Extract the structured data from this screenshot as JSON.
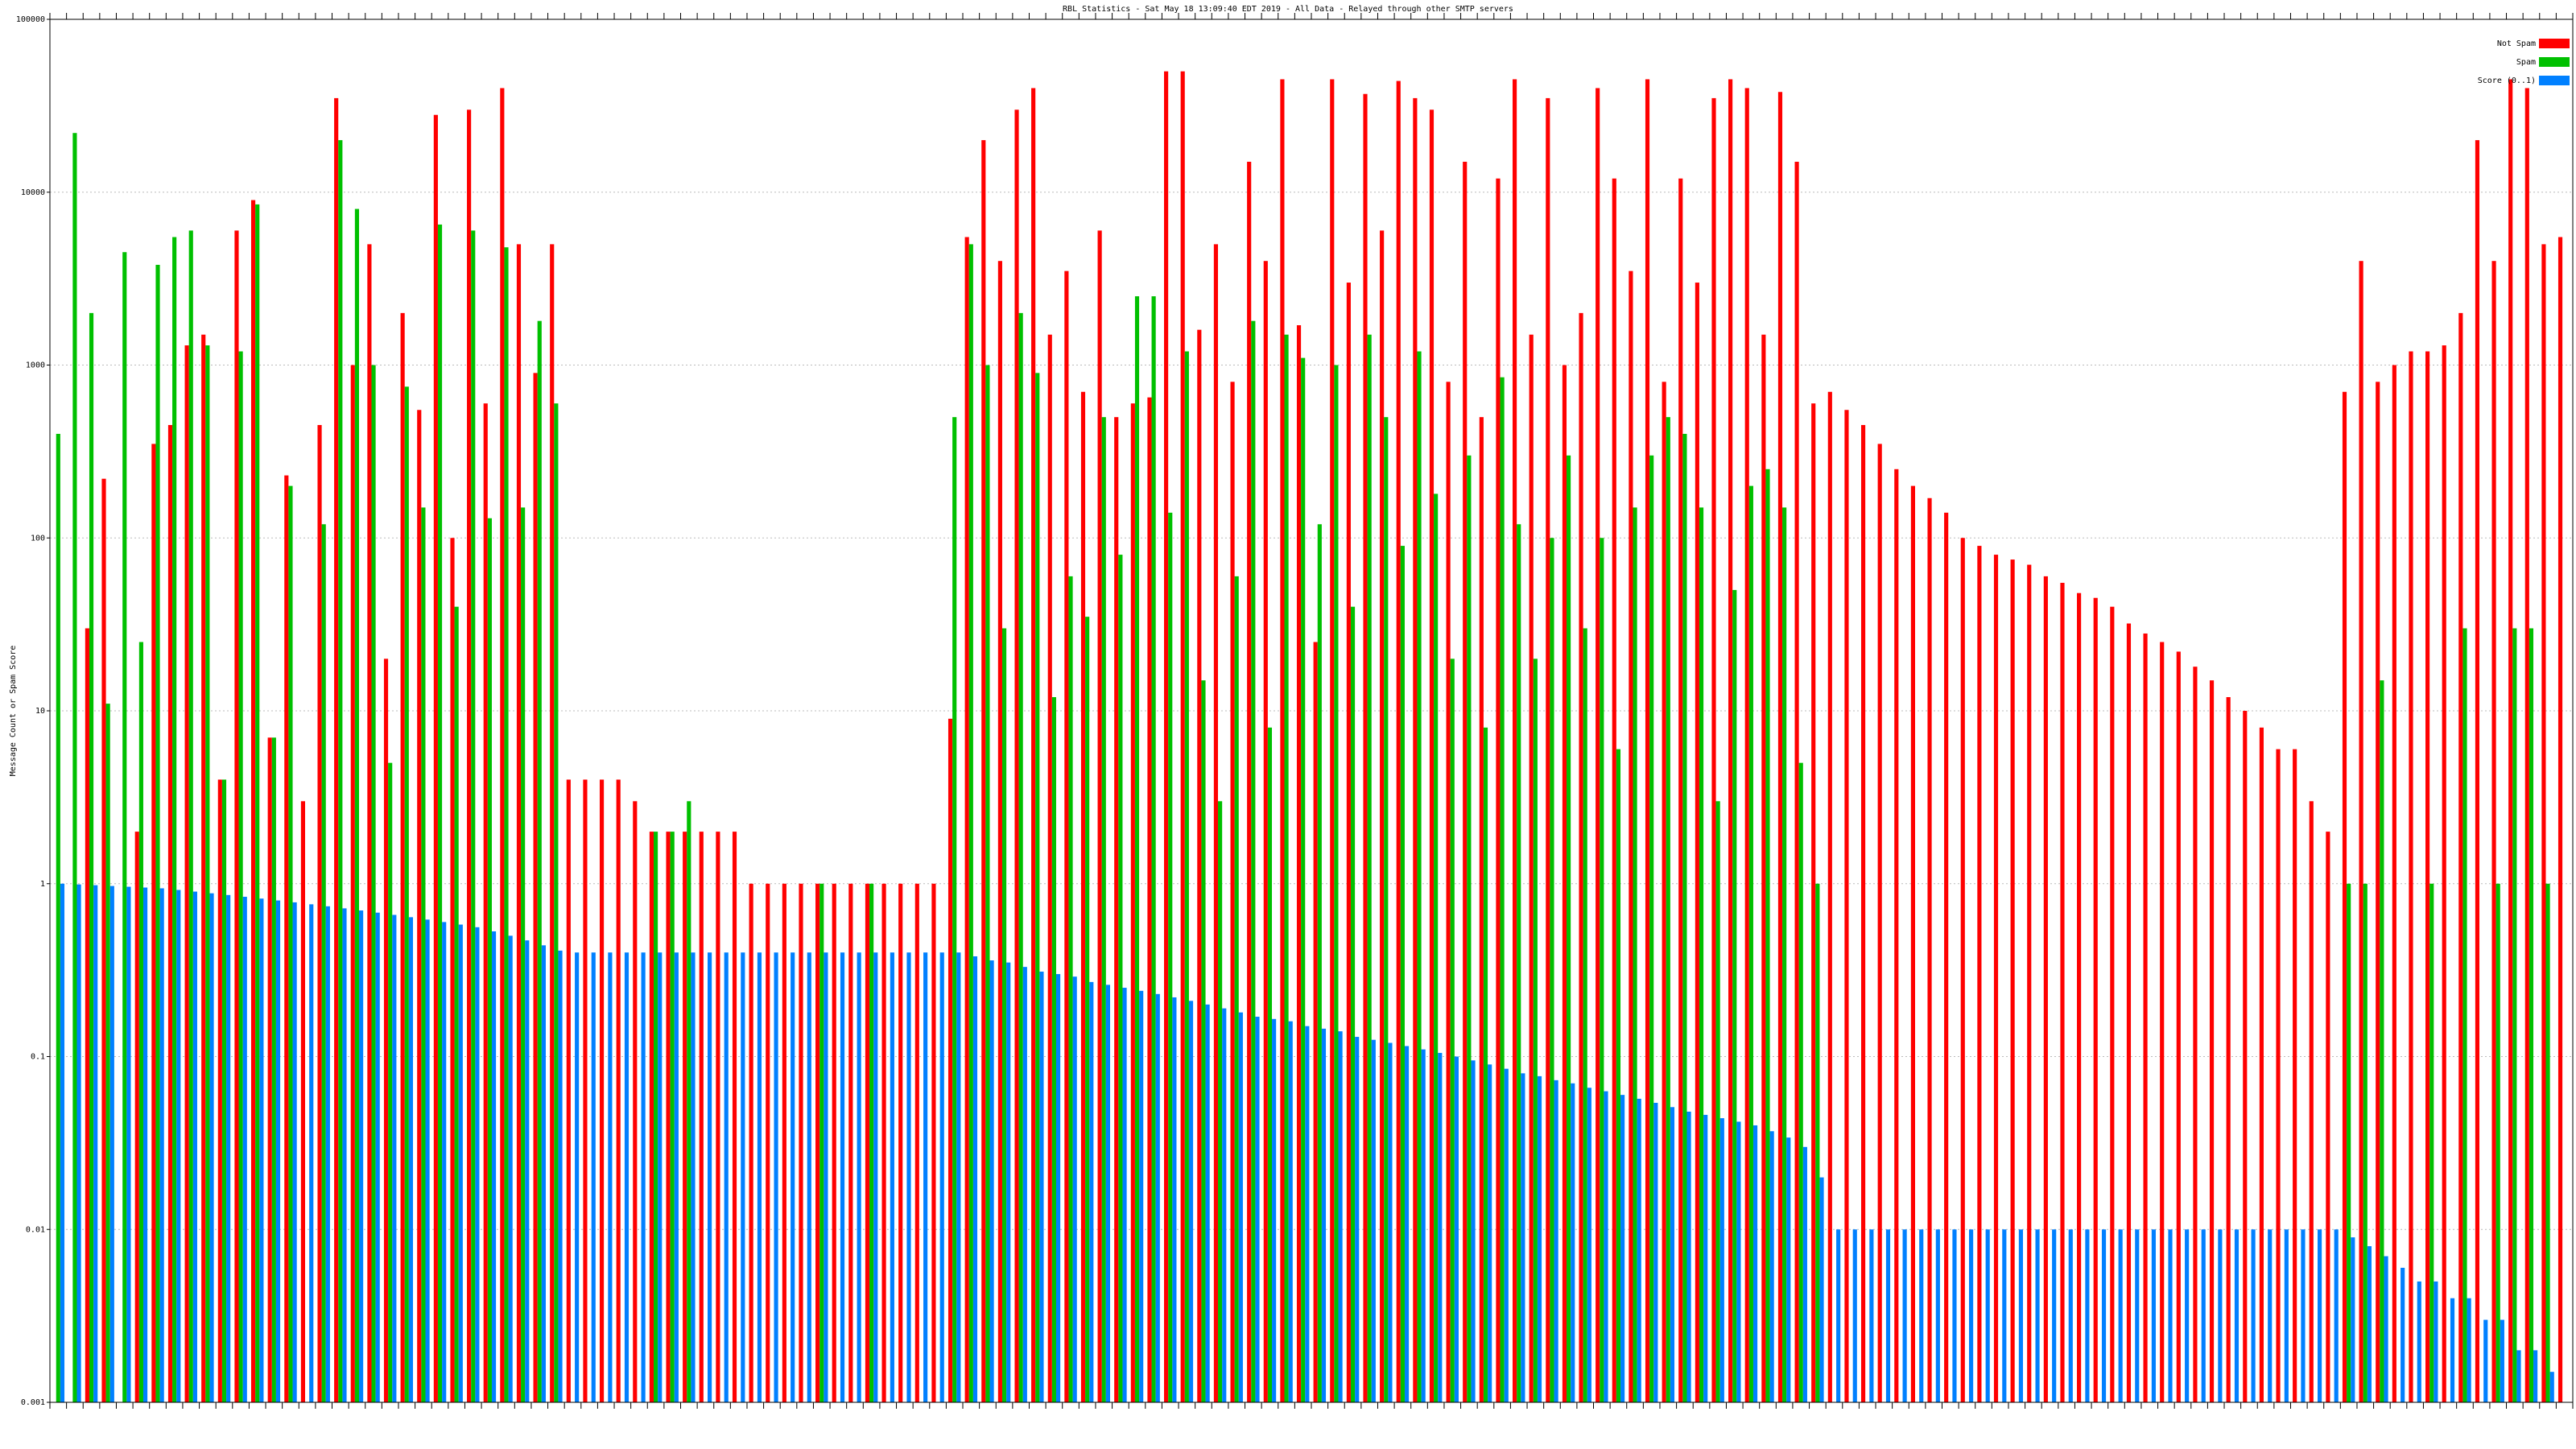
{
  "chart_data": {
    "type": "bar",
    "title": "RBL Statistics - Sat May 18 13:09:40 EDT 2019 - All Data - Relayed through other SMTP servers",
    "y_label": "Message Count or Spam Score",
    "yscale": "log",
    "grid": true,
    "legend": "top-right",
    "ylim": [
      0.001,
      100000
    ],
    "yticks": [
      0.001,
      0.01,
      0.1,
      1,
      10,
      100,
      1000,
      10000,
      100000
    ],
    "series": [
      {
        "name": "Not Spam",
        "color": "#ff0000",
        "values": [
          null,
          null,
          30,
          220,
          null,
          2,
          350,
          450,
          1300,
          1500,
          4,
          6000,
          9000,
          7,
          230,
          3,
          450,
          35000,
          1000,
          5000,
          20,
          2000,
          550,
          28000,
          100,
          30000,
          600,
          40000,
          5000,
          900,
          5000,
          4,
          4,
          4,
          4,
          3,
          2,
          2,
          2,
          2,
          2,
          2,
          1,
          1,
          1,
          1,
          1,
          1,
          1,
          1,
          1,
          1,
          1,
          1,
          9,
          5500,
          20000,
          4000,
          30000,
          40000,
          1500,
          3500,
          700,
          6000,
          500,
          600,
          650,
          50000,
          50000,
          1600,
          5000,
          800,
          15000,
          4000,
          45000,
          1700,
          25,
          45000,
          3000,
          37000,
          6000,
          44000,
          35000,
          30000,
          800,
          15000,
          500,
          12000,
          45000,
          1500,
          35000,
          1000,
          2000,
          40000,
          12000,
          3500,
          45000,
          800,
          12000,
          3000,
          35000,
          45000,
          40000,
          1500,
          38000,
          15000,
          600,
          700,
          550,
          450,
          350,
          250,
          200,
          170,
          140,
          100,
          90,
          80,
          75,
          70,
          60,
          55,
          48,
          45,
          40,
          32,
          28,
          25,
          22,
          18,
          15,
          12,
          10,
          8,
          6,
          6,
          3,
          2,
          700,
          4000,
          800,
          1000,
          1200,
          1200,
          1300,
          2000,
          20000,
          4000,
          45000,
          40000,
          5000,
          5500
        ]
      },
      {
        "name": "Spam",
        "color": "#00c000",
        "values": [
          400,
          22000,
          2000,
          11,
          4500,
          25,
          3800,
          5500,
          6000,
          1300,
          4,
          1200,
          8500,
          7,
          200,
          null,
          120,
          20000,
          8000,
          1000,
          5,
          750,
          150,
          6500,
          40,
          6000,
          130,
          4800,
          150,
          1800,
          600,
          null,
          null,
          null,
          null,
          null,
          2,
          2,
          3,
          null,
          null,
          null,
          null,
          null,
          null,
          null,
          1,
          null,
          null,
          1,
          null,
          null,
          null,
          null,
          500,
          5000,
          1000,
          30,
          2000,
          900,
          12,
          60,
          35,
          500,
          80,
          2500,
          2500,
          140,
          1200,
          15,
          3,
          60,
          1800,
          8,
          1500,
          1100,
          120,
          1000,
          40,
          1500,
          500,
          90,
          1200,
          180,
          20,
          300,
          8,
          850,
          120,
          20,
          100,
          300,
          30,
          100,
          6,
          150,
          300,
          500,
          400,
          150,
          3,
          50,
          200,
          250,
          150,
          5,
          1,
          null,
          null,
          null,
          null,
          null,
          null,
          null,
          null,
          null,
          null,
          null,
          null,
          null,
          null,
          null,
          null,
          null,
          null,
          null,
          null,
          null,
          null,
          null,
          null,
          null,
          null,
          null,
          null,
          null,
          null,
          null,
          1,
          1,
          15,
          null,
          null,
          1,
          null,
          30,
          null,
          1,
          30,
          30,
          1,
          null
        ]
      },
      {
        "name": "Score (0..1)",
        "color": "#0080ff",
        "values": [
          1,
          0.99,
          0.98,
          0.97,
          0.96,
          0.95,
          0.94,
          0.92,
          0.9,
          0.88,
          0.86,
          0.84,
          0.82,
          0.8,
          0.78,
          0.76,
          0.74,
          0.72,
          0.7,
          0.68,
          0.66,
          0.64,
          0.62,
          0.6,
          0.58,
          0.56,
          0.53,
          0.5,
          0.47,
          0.44,
          0.41,
          0.4,
          0.4,
          0.4,
          0.4,
          0.4,
          0.4,
          0.4,
          0.4,
          0.4,
          0.4,
          0.4,
          0.4,
          0.4,
          0.4,
          0.4,
          0.4,
          0.4,
          0.4,
          0.4,
          0.4,
          0.4,
          0.4,
          0.4,
          0.4,
          0.38,
          0.36,
          0.35,
          0.33,
          0.31,
          0.3,
          0.29,
          0.27,
          0.26,
          0.25,
          0.24,
          0.23,
          0.22,
          0.21,
          0.2,
          0.19,
          0.18,
          0.17,
          0.165,
          0.16,
          0.15,
          0.145,
          0.14,
          0.13,
          0.125,
          0.12,
          0.115,
          0.11,
          0.105,
          0.1,
          0.095,
          0.09,
          0.085,
          0.08,
          0.077,
          0.073,
          0.07,
          0.066,
          0.063,
          0.06,
          0.057,
          0.054,
          0.051,
          0.048,
          0.046,
          0.044,
          0.042,
          0.04,
          0.037,
          0.034,
          0.03,
          0.02,
          0.01,
          0.01,
          0.01,
          0.01,
          0.01,
          0.01,
          0.01,
          0.01,
          0.01,
          0.01,
          0.01,
          0.01,
          0.01,
          0.01,
          0.01,
          0.01,
          0.01,
          0.01,
          0.01,
          0.01,
          0.01,
          0.01,
          0.01,
          0.01,
          0.01,
          0.01,
          0.01,
          0.01,
          0.01,
          0.01,
          0.01,
          0.009,
          0.008,
          0.007,
          0.006,
          0.005,
          0.005,
          0.004,
          0.004,
          0.003,
          0.003,
          0.002,
          0.002,
          0.0015,
          0.001
        ]
      }
    ]
  }
}
